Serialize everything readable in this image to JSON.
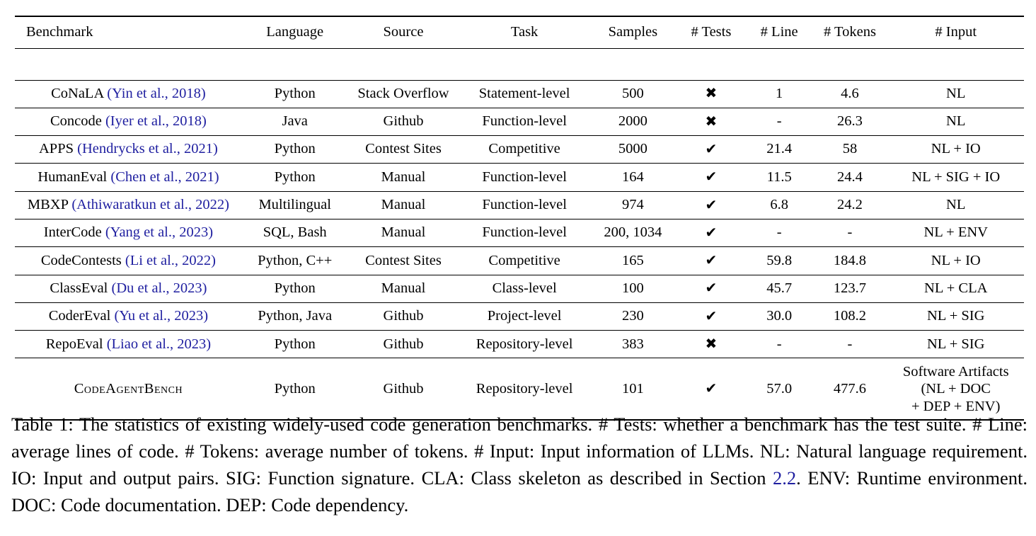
{
  "table": {
    "headers": [
      "Benchmark",
      "Language",
      "Source",
      "Task",
      "Samples",
      "# Tests",
      "# Line",
      "# Tokens",
      "# Input"
    ],
    "rows": [
      {
        "name": "CoNaLA",
        "cite": "(Yin et al., 2018)",
        "language": "Python",
        "source": "Stack Overflow",
        "task": "Statement-level",
        "samples": "500",
        "tests": "✖",
        "line": "1",
        "tokens": "4.6",
        "input": "NL"
      },
      {
        "name": "Concode",
        "cite": "(Iyer et al., 2018)",
        "language": "Java",
        "source": "Github",
        "task": "Function-level",
        "samples": "2000",
        "tests": "✖",
        "line": "-",
        "tokens": "26.3",
        "input": "NL"
      },
      {
        "name": "APPS",
        "cite": "(Hendrycks et al., 2021)",
        "language": "Python",
        "source": "Contest Sites",
        "task": "Competitive",
        "samples": "5000",
        "tests": "✔",
        "line": "21.4",
        "tokens": "58",
        "input": "NL + IO"
      },
      {
        "name": "HumanEval",
        "cite": "(Chen et al., 2021)",
        "language": "Python",
        "source": "Manual",
        "task": "Function-level",
        "samples": "164",
        "tests": "✔",
        "line": "11.5",
        "tokens": "24.4",
        "input": "NL + SIG + IO"
      },
      {
        "name": "MBXP",
        "cite": "(Athiwaratkun et al., 2022)",
        "language": "Multilingual",
        "source": "Manual",
        "task": "Function-level",
        "samples": "974",
        "tests": "✔",
        "line": "6.8",
        "tokens": "24.2",
        "input": "NL"
      },
      {
        "name": "InterCode",
        "cite": "(Yang et al., 2023)",
        "language": "SQL, Bash",
        "source": "Manual",
        "task": "Function-level",
        "samples": "200, 1034",
        "tests": "✔",
        "line": "-",
        "tokens": "-",
        "input": "NL + ENV"
      },
      {
        "name": "CodeContests",
        "cite": "(Li et al., 2022)",
        "language": "Python, C++",
        "source": "Contest Sites",
        "task": "Competitive",
        "samples": "165",
        "tests": "✔",
        "line": "59.8",
        "tokens": "184.8",
        "input": "NL + IO"
      },
      {
        "name": "ClassEval",
        "cite": "(Du et al., 2023)",
        "language": "Python",
        "source": "Manual",
        "task": "Class-level",
        "samples": "100",
        "tests": "✔",
        "line": "45.7",
        "tokens": "123.7",
        "input": "NL + CLA"
      },
      {
        "name": "CoderEval",
        "cite": "(Yu et al., 2023)",
        "language": "Python, Java",
        "source": "Github",
        "task": "Project-level",
        "samples": "230",
        "tests": "✔",
        "line": "30.0",
        "tokens": "108.2",
        "input": "NL + SIG"
      },
      {
        "name": "RepoEval",
        "cite": "(Liao et al., 2023)",
        "language": "Python",
        "source": "Github",
        "task": "Repository-level",
        "samples": "383",
        "tests": "✖",
        "line": "-",
        "tokens": "-",
        "input": "NL + SIG"
      }
    ],
    "last_row": {
      "name": "CodeAgentBench",
      "language": "Python",
      "source": "Github",
      "task": "Repository-level",
      "samples": "101",
      "tests": "✔",
      "line": "57.0",
      "tokens": "477.6",
      "input_lines": [
        "Software Artifacts",
        "(NL + DOC",
        "+ DEP + ENV)"
      ]
    }
  },
  "caption": {
    "text_before_ref": "Table 1: The statistics of existing widely-used code generation benchmarks. # Tests: whether a benchmark has the test suite. # Line: average lines of code. # Tokens: average number of tokens. # Input: Input information of LLMs. NL: Natural language requirement. IO: Input and output pairs. SIG: Function signature. CLA: Class skeleton as described in Section ",
    "ref": "2.2",
    "text_after_ref": ". ENV: Runtime environment. DOC: Code documentation. DEP: Code dependency."
  },
  "colors": {
    "citation": "#1f1fa0",
    "text": "#000000"
  }
}
